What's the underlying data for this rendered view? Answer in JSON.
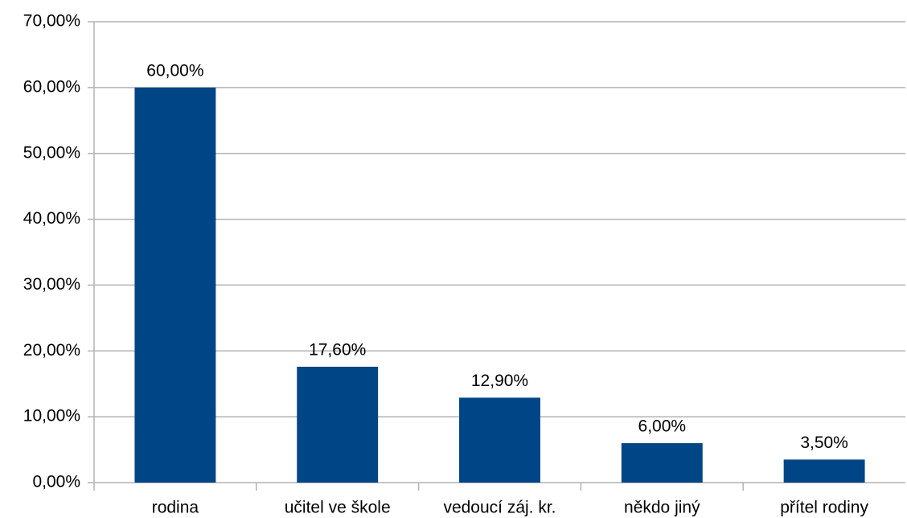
{
  "chart_data": {
    "type": "bar",
    "categories": [
      "rodina",
      "učitel ve škole",
      "vedoucí záj. kr.",
      "někdo jiný",
      "přítel rodiny"
    ],
    "values": [
      60,
      17.6,
      12.9,
      6,
      3.5
    ],
    "value_labels": [
      "60,00%",
      "17,60%",
      "12,90%",
      "6,00%",
      "3,50%"
    ],
    "color": "#004586",
    "ylim": [
      0,
      70
    ],
    "yticks": [
      {
        "value": 0,
        "label": "0,00%"
      },
      {
        "value": 10,
        "label": "10,00%"
      },
      {
        "value": 20,
        "label": "20,00%"
      },
      {
        "value": 30,
        "label": "30,00%"
      },
      {
        "value": 40,
        "label": "40,00%"
      },
      {
        "value": 50,
        "label": "50,00%"
      },
      {
        "value": 60,
        "label": "60,00%"
      },
      {
        "value": 70,
        "label": "70,00%"
      }
    ],
    "grid": true
  }
}
